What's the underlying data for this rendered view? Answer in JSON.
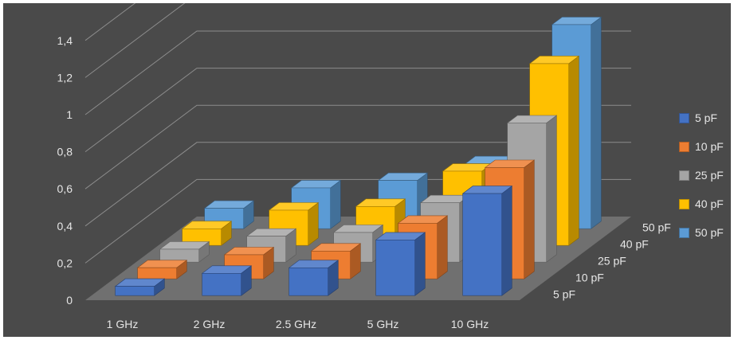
{
  "chart_data": {
    "type": "bar",
    "title": "",
    "xlabel": "",
    "ylabel": "",
    "categories": [
      "1 GHz",
      "2 GHz",
      "2.5 GHz",
      "5 GHz",
      "10 GHz"
    ],
    "y_ticks": [
      "0",
      "0,2",
      "0,4",
      "0,6",
      "0,8",
      "1",
      "1,2",
      "1,4"
    ],
    "ylim": [
      0,
      1.4
    ],
    "grid": true,
    "legend_position": "right",
    "series": [
      {
        "name": "5 pF",
        "color": "#4472C4",
        "values": [
          0.05,
          0.12,
          0.15,
          0.3,
          0.55
        ]
      },
      {
        "name": "10 pF",
        "color": "#ED7D31",
        "values": [
          0.06,
          0.13,
          0.15,
          0.3,
          0.6
        ]
      },
      {
        "name": "25 pF",
        "color": "#A5A5A5",
        "values": [
          0.07,
          0.14,
          0.16,
          0.32,
          0.75
        ]
      },
      {
        "name": "40 pF",
        "color": "#FFC000",
        "values": [
          0.09,
          0.19,
          0.21,
          0.4,
          0.98
        ]
      },
      {
        "name": "50 pF",
        "color": "#5B9BD5",
        "values": [
          0.11,
          0.22,
          0.26,
          0.35,
          1.1
        ]
      }
    ],
    "depth_labels": [
      "5 pF",
      "10 pF",
      "25 pF",
      "40 pF",
      "50 pF"
    ]
  }
}
